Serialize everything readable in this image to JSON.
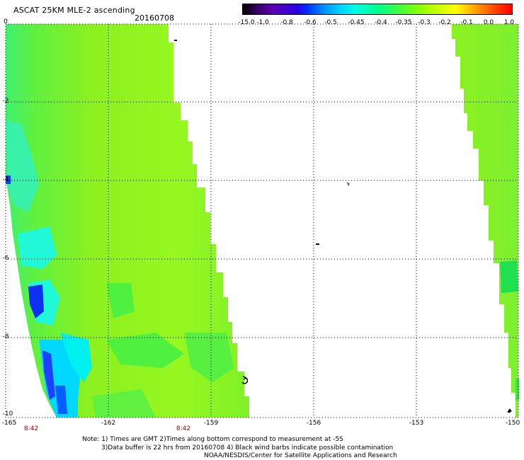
{
  "title": "ASCAT 25KM MLE-2 ascending",
  "date": "20160708",
  "colorbar": {
    "labels": [
      "-15.0",
      "-1.0",
      "-0.8",
      "-0.6",
      "-0.5",
      "-0.45",
      "-0.4",
      "-0.35",
      "-0.3",
      "-0.2",
      "-0.1",
      "0.0",
      "1.0"
    ],
    "colors": [
      "#000000",
      "#5a00b0",
      "#0030ff",
      "#00d0ff",
      "#00ff90",
      "#90ff00",
      "#ffff00",
      "#ff8000",
      "#ff0000"
    ]
  },
  "map": {
    "lon_ticks": [
      "-165",
      "-162",
      "-159",
      "-156",
      "-153",
      "-150"
    ],
    "lat_ticks": [
      "0",
      "-2",
      "-4",
      "-6",
      "-8",
      "-10"
    ],
    "lon_range": [
      -165,
      -150
    ],
    "lat_range": [
      -10,
      0
    ],
    "swath_times": [
      "8:42",
      "8:42"
    ]
  },
  "notes": {
    "line1": "Note: 1) Times are GMT 2)Times along bottom correspond to measurement at -5S",
    "line2": "3)Data buffer is 22 hrs from 20160708 4) Black wind barbs indicate possible contamination",
    "line3": "NOAA/NESDIS/Center for Satellite Applications and Research"
  }
}
